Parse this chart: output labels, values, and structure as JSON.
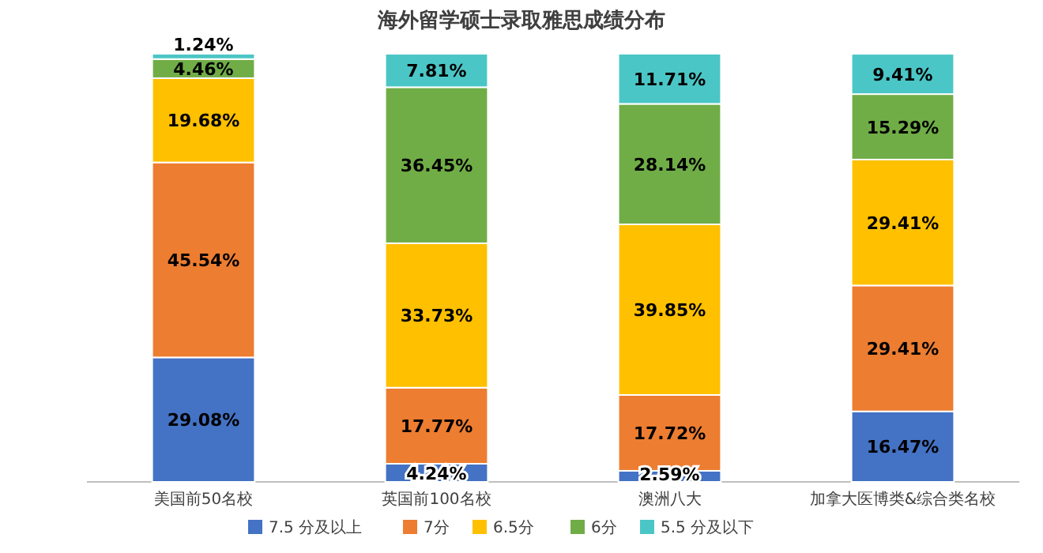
{
  "chart_data": {
    "type": "bar",
    "stacked": true,
    "title": "海外留学硕士录取雅思成绩分布",
    "categories": [
      "美国前50名校",
      "英国前100名校",
      "澳洲八大",
      "加拿大医博类&综合类名校"
    ],
    "legend": "bottom",
    "series": [
      {
        "name": "7.5 分及以上",
        "color": "#4472c4",
        "values": [
          29.08,
          4.24,
          2.59,
          16.47
        ],
        "value_labels": [
          "29.08%",
          "4.24%",
          "2.59%",
          "16.47%"
        ]
      },
      {
        "name": "7分",
        "color": "#ed7d31",
        "values": [
          45.54,
          17.77,
          17.72,
          29.41
        ],
        "value_labels": [
          "45.54%",
          "17.77%",
          "17.72%",
          "29.41%"
        ]
      },
      {
        "name": "6.5分",
        "color": "#ffc000",
        "values": [
          19.68,
          33.73,
          39.85,
          29.41
        ],
        "value_labels": [
          "19.68%",
          "33.73%",
          "39.85%",
          "29.41%"
        ]
      },
      {
        "name": "6分",
        "color": "#70ad47",
        "values": [
          4.46,
          36.45,
          28.14,
          15.29
        ],
        "value_labels": [
          "4.46%",
          "36.45%",
          "28.14%",
          "15.29%"
        ]
      },
      {
        "name": "5.5 分及以下",
        "color": "#4bc6c6",
        "values": [
          1.24,
          7.81,
          11.71,
          9.41
        ],
        "value_labels": [
          "1.24%",
          "7.81%",
          "11.71%",
          "9.41%"
        ]
      }
    ]
  }
}
